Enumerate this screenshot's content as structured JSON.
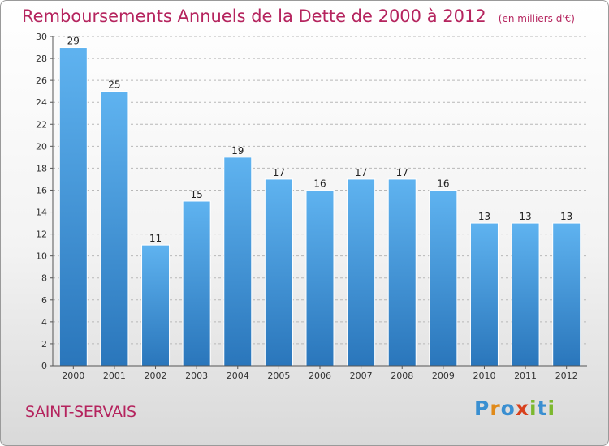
{
  "header": {
    "title": "Remboursements Annuels de la Dette de 2000 à 2012",
    "unit": "(en milliers d'€)"
  },
  "footer": {
    "commune": "SAINT-SERVAIS",
    "logo": {
      "text": "Proxiti",
      "letters": [
        {
          "ch": "P",
          "color": "#3a8fd1"
        },
        {
          "ch": "r",
          "color": "#e08a1a"
        },
        {
          "ch": "o",
          "color": "#3a8fd1"
        },
        {
          "ch": "x",
          "color": "#d8401c"
        },
        {
          "ch": "i",
          "color": "#7cb82f"
        },
        {
          "ch": "t",
          "color": "#3a8fd1"
        },
        {
          "ch": "i",
          "color": "#7cb82f"
        }
      ]
    }
  },
  "colors": {
    "title": "#b5245e",
    "bar_top": "#5fb3f0",
    "bar_bottom": "#2a76bb",
    "grid": "#b8b8b8"
  },
  "chart_data": {
    "type": "bar",
    "title": "Remboursements Annuels de la Dette de 2000 à 2012",
    "xlabel": "",
    "ylabel": "(en milliers d'€)",
    "categories": [
      "2000",
      "2001",
      "2002",
      "2003",
      "2004",
      "2005",
      "2006",
      "2007",
      "2008",
      "2009",
      "2010",
      "2011",
      "2012"
    ],
    "values": [
      29,
      25,
      11,
      15,
      19,
      17,
      16,
      17,
      17,
      16,
      13,
      13,
      13
    ],
    "ylim": [
      0,
      30
    ],
    "yticks": [
      0,
      2,
      4,
      6,
      8,
      10,
      12,
      14,
      16,
      18,
      20,
      22,
      24,
      26,
      28,
      30
    ],
    "grid": true
  }
}
